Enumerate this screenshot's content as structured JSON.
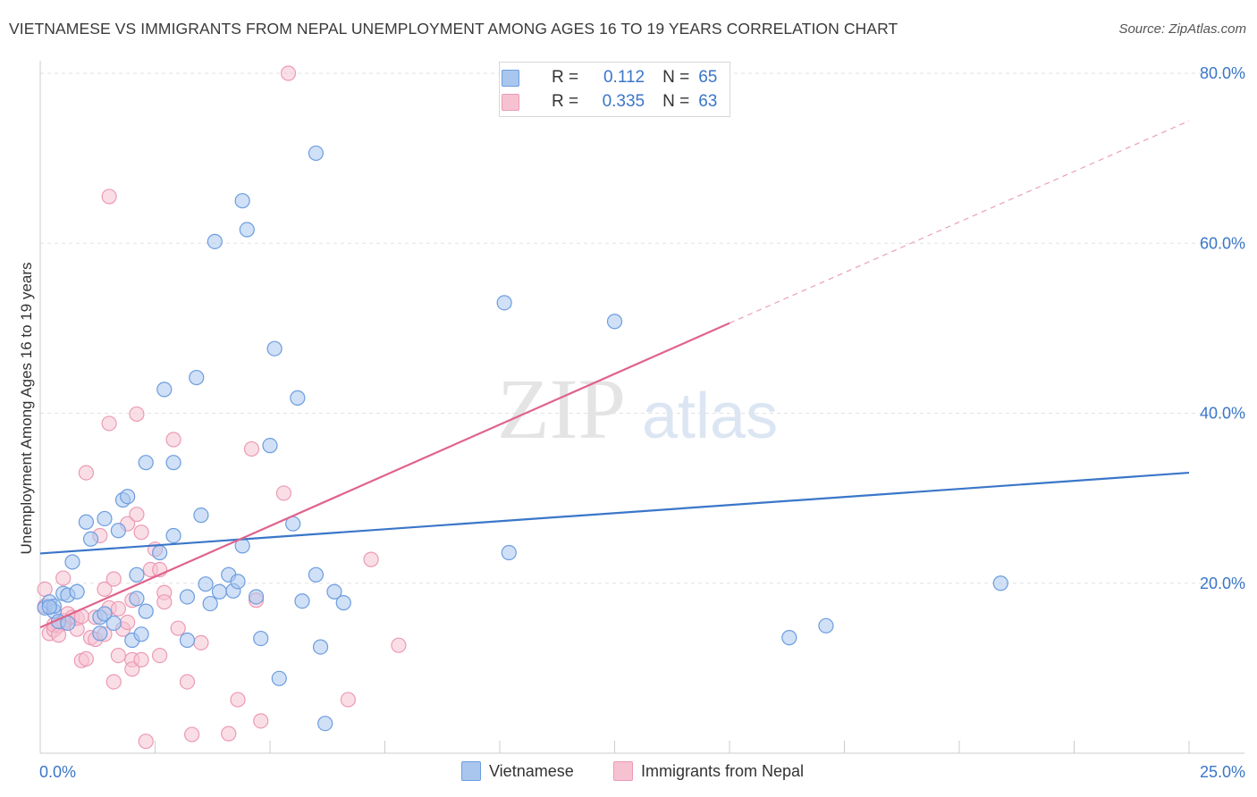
{
  "title": "VIETNAMESE VS IMMIGRANTS FROM NEPAL UNEMPLOYMENT AMONG AGES 16 TO 19 YEARS CORRELATION CHART",
  "source": "Source: ZipAtlas.com",
  "watermark": {
    "zip": "ZIP",
    "atlas": "atlas"
  },
  "legend": {
    "rows": [
      {
        "r_label": "R =",
        "r_value": "0.112",
        "n_label": "N =",
        "n_value": "65"
      },
      {
        "r_label": "R =",
        "r_value": "0.335",
        "n_label": "N =",
        "n_value": "63"
      }
    ]
  },
  "bottom_legend": {
    "series_a": "Vietnamese",
    "series_b": "Immigrants from Nepal"
  },
  "colors": {
    "blue": "#3a76c9",
    "blue_fill": "#a9c6ee",
    "pink": "#e0638b",
    "pink_fill": "#f6c2d2",
    "axis_text": "#3a76c9",
    "grid": "#e2e2e2"
  },
  "chart_data": {
    "type": "scatter",
    "title": "VIETNAMESE VS IMMIGRANTS FROM NEPAL UNEMPLOYMENT AMONG AGES 16 TO 19 YEARS CORRELATION CHART",
    "xlabel": "",
    "ylabel": "Unemployment Among Ages 16 to 19 years",
    "xlim": [
      0,
      25
    ],
    "ylim": [
      0,
      80
    ],
    "x_tick_labels": [
      "0.0%",
      "25.0%"
    ],
    "y_ticks": [
      20,
      40,
      60,
      80
    ],
    "y_tick_labels": [
      "20.0%",
      "40.0%",
      "60.0%",
      "80.0%"
    ],
    "grid": true,
    "series": [
      {
        "name": "Vietnamese",
        "r": 0.112,
        "n": 65,
        "trend": {
          "x": [
            0,
            25
          ],
          "y": [
            23.5,
            33.0
          ],
          "dashed_from": null
        },
        "points": [
          [
            0.1,
            17.1
          ],
          [
            0.2,
            17.8
          ],
          [
            0.3,
            16.7
          ],
          [
            0.3,
            17.3
          ],
          [
            0.4,
            15.5
          ],
          [
            0.5,
            18.8
          ],
          [
            0.6,
            18.6
          ],
          [
            0.7,
            22.5
          ],
          [
            0.8,
            19.0
          ],
          [
            1.0,
            27.2
          ],
          [
            1.1,
            25.2
          ],
          [
            1.3,
            16.0
          ],
          [
            1.3,
            14.1
          ],
          [
            1.4,
            16.4
          ],
          [
            1.4,
            27.6
          ],
          [
            1.6,
            15.3
          ],
          [
            1.7,
            26.2
          ],
          [
            1.8,
            29.8
          ],
          [
            1.9,
            30.2
          ],
          [
            2.0,
            13.3
          ],
          [
            2.1,
            18.2
          ],
          [
            2.1,
            21.0
          ],
          [
            2.2,
            14.0
          ],
          [
            2.3,
            34.2
          ],
          [
            2.3,
            16.7
          ],
          [
            2.6,
            23.6
          ],
          [
            2.7,
            42.8
          ],
          [
            2.9,
            34.2
          ],
          [
            2.9,
            25.6
          ],
          [
            3.2,
            18.4
          ],
          [
            3.2,
            13.3
          ],
          [
            3.4,
            44.2
          ],
          [
            3.5,
            28.0
          ],
          [
            3.6,
            19.9
          ],
          [
            3.7,
            17.6
          ],
          [
            3.8,
            60.2
          ],
          [
            3.9,
            19.0
          ],
          [
            4.1,
            21.0
          ],
          [
            4.2,
            19.1
          ],
          [
            4.3,
            20.2
          ],
          [
            4.4,
            65.0
          ],
          [
            4.4,
            24.4
          ],
          [
            4.5,
            61.6
          ],
          [
            4.7,
            18.4
          ],
          [
            4.8,
            13.5
          ],
          [
            5.0,
            36.2
          ],
          [
            5.1,
            47.6
          ],
          [
            5.2,
            8.8
          ],
          [
            5.5,
            27.0
          ],
          [
            5.6,
            41.8
          ],
          [
            5.7,
            17.9
          ],
          [
            6.0,
            70.6
          ],
          [
            6.1,
            12.5
          ],
          [
            6.2,
            3.5
          ],
          [
            6.4,
            19.0
          ],
          [
            6.6,
            17.7
          ],
          [
            10.1,
            53.0
          ],
          [
            10.2,
            23.6
          ],
          [
            12.5,
            50.8
          ],
          [
            16.3,
            13.6
          ],
          [
            17.1,
            15.0
          ],
          [
            20.9,
            20.0
          ],
          [
            0.2,
            17.2
          ],
          [
            0.6,
            15.3
          ],
          [
            6.0,
            21.0
          ]
        ]
      },
      {
        "name": "Immigrants from Nepal",
        "r": 0.335,
        "n": 63,
        "trend": {
          "x": [
            0,
            15
          ],
          "y": [
            14.8,
            50.6
          ],
          "dashed_to": [
            25,
            74.4
          ]
        },
        "points": [
          [
            0.1,
            17.3
          ],
          [
            0.1,
            19.3
          ],
          [
            0.2,
            14.1
          ],
          [
            0.3,
            14.5
          ],
          [
            0.4,
            15.0
          ],
          [
            0.5,
            15.6
          ],
          [
            0.5,
            15.3
          ],
          [
            0.5,
            20.6
          ],
          [
            0.6,
            16.4
          ],
          [
            0.7,
            16.0
          ],
          [
            0.8,
            14.6
          ],
          [
            0.9,
            10.9
          ],
          [
            1.0,
            11.1
          ],
          [
            1.0,
            33.0
          ],
          [
            1.1,
            13.6
          ],
          [
            1.2,
            13.4
          ],
          [
            1.3,
            25.6
          ],
          [
            1.4,
            19.3
          ],
          [
            1.5,
            17.1
          ],
          [
            1.5,
            38.8
          ],
          [
            1.5,
            65.5
          ],
          [
            1.6,
            8.4
          ],
          [
            1.6,
            20.5
          ],
          [
            1.7,
            11.5
          ],
          [
            1.7,
            17.0
          ],
          [
            1.8,
            14.6
          ],
          [
            1.9,
            27.0
          ],
          [
            2.0,
            11.0
          ],
          [
            2.0,
            18.0
          ],
          [
            2.0,
            9.9
          ],
          [
            2.1,
            28.1
          ],
          [
            2.1,
            39.9
          ],
          [
            2.2,
            26.0
          ],
          [
            2.3,
            1.4
          ],
          [
            2.4,
            21.6
          ],
          [
            2.5,
            24.0
          ],
          [
            2.6,
            11.5
          ],
          [
            2.6,
            21.6
          ],
          [
            2.7,
            18.9
          ],
          [
            2.7,
            17.8
          ],
          [
            2.9,
            36.9
          ],
          [
            3.0,
            14.7
          ],
          [
            3.2,
            8.4
          ],
          [
            3.3,
            2.2
          ],
          [
            3.5,
            13.0
          ],
          [
            4.1,
            2.3
          ],
          [
            4.3,
            6.3
          ],
          [
            4.6,
            35.8
          ],
          [
            4.7,
            18.0
          ],
          [
            4.8,
            3.8
          ],
          [
            5.3,
            30.6
          ],
          [
            6.7,
            6.3
          ],
          [
            7.2,
            22.8
          ],
          [
            7.8,
            12.7
          ],
          [
            5.4,
            80.0
          ],
          [
            0.8,
            15.9
          ],
          [
            0.3,
            15.1
          ],
          [
            1.2,
            16.0
          ],
          [
            1.9,
            15.4
          ],
          [
            0.4,
            13.9
          ],
          [
            1.4,
            14.0
          ],
          [
            2.2,
            11.0
          ],
          [
            0.9,
            16.1
          ]
        ]
      }
    ]
  }
}
